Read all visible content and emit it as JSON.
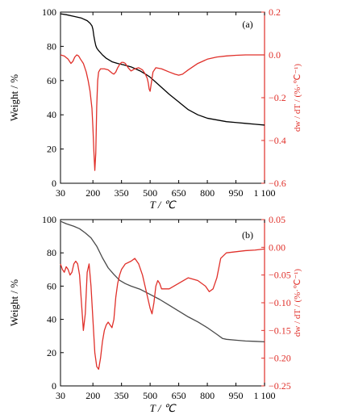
{
  "chart_data": [
    {
      "type": "line",
      "panel_label": "(a)",
      "xlabel": "T / ℃",
      "ylabel_left": "Weight / %",
      "ylabel_right": "dw / dT / (%·℃⁻¹)",
      "xlim": [
        30,
        1100
      ],
      "ylim_left": [
        0,
        100
      ],
      "ylim_right": [
        -0.6,
        0.2
      ],
      "x_ticks": [
        "30",
        "200",
        "350",
        "500",
        "650",
        "800",
        "950",
        "1 100"
      ],
      "x_tick_values": [
        30,
        200,
        350,
        500,
        650,
        800,
        950,
        1100
      ],
      "y_ticks_left": [
        "0",
        "20",
        "40",
        "60",
        "80",
        "100"
      ],
      "y_tick_values_left": [
        0,
        20,
        40,
        60,
        80,
        100
      ],
      "y_ticks_right": [
        "−0.6",
        "−0.4",
        "−0.2",
        "0.0",
        "0.2"
      ],
      "y_tick_values_right": [
        -0.6,
        -0.4,
        -0.2,
        0.0,
        0.2
      ],
      "series": [
        {
          "axis": "left",
          "color": "#000000",
          "x": [
            30,
            60,
            100,
            140,
            170,
            185,
            195,
            200,
            205,
            210,
            215,
            220,
            230,
            250,
            270,
            300,
            330,
            360,
            400,
            430,
            450,
            480,
            500,
            530,
            560,
            600,
            650,
            700,
            750,
            800,
            850,
            900,
            950,
            1000,
            1050,
            1100
          ],
          "y": [
            99,
            98.5,
            97.5,
            96.5,
            95,
            93.5,
            92,
            90,
            86,
            83,
            80.5,
            79,
            77.5,
            75,
            73,
            71,
            70,
            69.2,
            68,
            66.5,
            65.5,
            63.5,
            62,
            59,
            56,
            52,
            47.5,
            43,
            40,
            38,
            37,
            36,
            35.5,
            35,
            34.5,
            34
          ]
        },
        {
          "axis": "right",
          "color": "#e0302a",
          "x": [
            30,
            50,
            70,
            85,
            95,
            105,
            115,
            125,
            135,
            150,
            165,
            175,
            185,
            195,
            200,
            205,
            210,
            215,
            220,
            225,
            230,
            240,
            260,
            280,
            300,
            310,
            320,
            330,
            340,
            350,
            360,
            370,
            385,
            400,
            420,
            440,
            460,
            475,
            485,
            490,
            495,
            500,
            505,
            515,
            530,
            560,
            600,
            630,
            650,
            670,
            700,
            750,
            800,
            850,
            900,
            950,
            1000,
            1050,
            1100
          ],
          "y": [
            0.0,
            -0.005,
            -0.02,
            -0.04,
            -0.03,
            -0.01,
            0.0,
            -0.005,
            -0.02,
            -0.04,
            -0.08,
            -0.12,
            -0.17,
            -0.25,
            -0.34,
            -0.45,
            -0.54,
            -0.46,
            -0.24,
            -0.12,
            -0.08,
            -0.065,
            -0.065,
            -0.07,
            -0.085,
            -0.09,
            -0.08,
            -0.06,
            -0.045,
            -0.035,
            -0.035,
            -0.04,
            -0.06,
            -0.075,
            -0.065,
            -0.06,
            -0.07,
            -0.09,
            -0.11,
            -0.13,
            -0.16,
            -0.17,
            -0.14,
            -0.08,
            -0.06,
            -0.065,
            -0.08,
            -0.09,
            -0.095,
            -0.09,
            -0.07,
            -0.04,
            -0.02,
            -0.01,
            -0.005,
            -0.002,
            0.0,
            0.0,
            0.0
          ]
        }
      ]
    },
    {
      "type": "line",
      "panel_label": "(b)",
      "xlabel": "T / ℃",
      "ylabel_left": "Weight / %",
      "ylabel_right": "dw / dT / (%·℃⁻¹)",
      "xlim": [
        30,
        1100
      ],
      "ylim_left": [
        0,
        100
      ],
      "ylim_right": [
        -0.25,
        0.05
      ],
      "x_ticks": [
        "30",
        "200",
        "350",
        "500",
        "650",
        "800",
        "950",
        "1 100"
      ],
      "x_tick_values": [
        30,
        200,
        350,
        500,
        650,
        800,
        950,
        1100
      ],
      "y_ticks_left": [
        "0",
        "20",
        "40",
        "60",
        "80",
        "100"
      ],
      "y_tick_values_left": [
        0,
        20,
        40,
        60,
        80,
        100
      ],
      "y_ticks_right": [
        "−0.25",
        "−0.20",
        "−0.15",
        "−0.10",
        "−0.05",
        "0.00",
        "0.05"
      ],
      "y_tick_values_right": [
        -0.25,
        -0.2,
        -0.15,
        -0.1,
        -0.05,
        0.0,
        0.05
      ],
      "series": [
        {
          "axis": "left",
          "color": "#4a4a4a",
          "x": [
            30,
            60,
            100,
            130,
            160,
            190,
            220,
            250,
            280,
            310,
            340,
            370,
            400,
            450,
            500,
            550,
            600,
            650,
            700,
            750,
            800,
            850,
            880,
            900,
            950,
            1000,
            1050,
            1100
          ],
          "y": [
            99,
            97.5,
            96,
            94.5,
            92,
            89,
            84,
            77,
            71,
            67,
            63.5,
            61.5,
            60,
            58,
            55,
            52,
            48.5,
            45,
            41.5,
            38.5,
            35,
            31,
            28.5,
            28,
            27.5,
            27,
            26.8,
            26.5
          ]
        },
        {
          "axis": "right",
          "color": "#e0302a",
          "x": [
            30,
            40,
            50,
            60,
            70,
            80,
            90,
            100,
            110,
            120,
            130,
            140,
            150,
            160,
            170,
            180,
            190,
            200,
            210,
            220,
            230,
            240,
            250,
            260,
            270,
            280,
            290,
            300,
            310,
            320,
            330,
            340,
            350,
            370,
            400,
            420,
            440,
            460,
            480,
            500,
            510,
            520,
            530,
            540,
            550,
            560,
            600,
            650,
            700,
            750,
            790,
            810,
            830,
            850,
            870,
            900,
            950,
            1000,
            1050,
            1100
          ],
          "y": [
            -0.03,
            -0.04,
            -0.045,
            -0.035,
            -0.04,
            -0.05,
            -0.045,
            -0.03,
            -0.025,
            -0.03,
            -0.05,
            -0.1,
            -0.15,
            -0.12,
            -0.045,
            -0.03,
            -0.07,
            -0.13,
            -0.19,
            -0.215,
            -0.22,
            -0.2,
            -0.17,
            -0.15,
            -0.14,
            -0.135,
            -0.14,
            -0.145,
            -0.13,
            -0.09,
            -0.065,
            -0.05,
            -0.04,
            -0.03,
            -0.025,
            -0.02,
            -0.03,
            -0.05,
            -0.08,
            -0.11,
            -0.12,
            -0.1,
            -0.07,
            -0.06,
            -0.065,
            -0.075,
            -0.075,
            -0.065,
            -0.055,
            -0.06,
            -0.07,
            -0.08,
            -0.075,
            -0.055,
            -0.02,
            -0.01,
            -0.008,
            -0.006,
            -0.005,
            -0.003
          ]
        }
      ]
    }
  ]
}
